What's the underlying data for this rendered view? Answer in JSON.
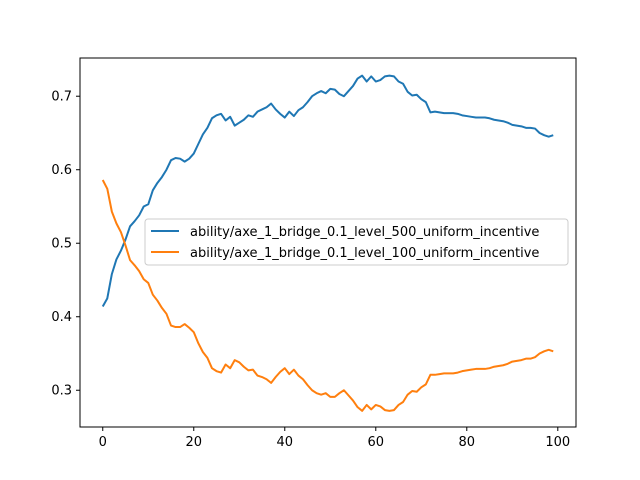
{
  "chart_data": {
    "type": "line",
    "title": "",
    "xlabel": "",
    "ylabel": "",
    "xlim": [
      -5,
      104
    ],
    "ylim": [
      0.25,
      0.752
    ],
    "x_ticks": [
      0,
      20,
      40,
      60,
      80,
      100
    ],
    "y_ticks": [
      0.3,
      0.4,
      0.5,
      0.6,
      0.7
    ],
    "grid": false,
    "legend_position": "center-right",
    "x": [
      0,
      1,
      2,
      3,
      4,
      5,
      6,
      7,
      8,
      9,
      10,
      11,
      12,
      13,
      14,
      15,
      16,
      17,
      18,
      19,
      20,
      21,
      22,
      23,
      24,
      25,
      26,
      27,
      28,
      29,
      30,
      31,
      32,
      33,
      34,
      35,
      36,
      37,
      38,
      39,
      40,
      41,
      42,
      43,
      44,
      45,
      46,
      47,
      48,
      49,
      50,
      51,
      52,
      53,
      54,
      55,
      56,
      57,
      58,
      59,
      60,
      61,
      62,
      63,
      64,
      65,
      66,
      67,
      68,
      69,
      70,
      71,
      72,
      73,
      74,
      75,
      76,
      77,
      78,
      79,
      80,
      81,
      82,
      83,
      84,
      85,
      86,
      87,
      88,
      89,
      90,
      91,
      92,
      93,
      94,
      95,
      96,
      97,
      98,
      99
    ],
    "series": [
      {
        "name": "ability/axe_1_bridge_0.1_level_500_uniform_incentive",
        "color": "#1f77b4",
        "values": [
          0.414,
          0.425,
          0.458,
          0.478,
          0.49,
          0.505,
          0.523,
          0.53,
          0.538,
          0.55,
          0.553,
          0.572,
          0.582,
          0.59,
          0.6,
          0.613,
          0.616,
          0.615,
          0.611,
          0.615,
          0.622,
          0.635,
          0.648,
          0.657,
          0.67,
          0.674,
          0.676,
          0.667,
          0.672,
          0.66,
          0.664,
          0.668,
          0.674,
          0.672,
          0.679,
          0.682,
          0.685,
          0.69,
          0.682,
          0.676,
          0.671,
          0.679,
          0.673,
          0.681,
          0.685,
          0.692,
          0.7,
          0.704,
          0.707,
          0.704,
          0.71,
          0.709,
          0.703,
          0.7,
          0.707,
          0.714,
          0.724,
          0.728,
          0.72,
          0.727,
          0.72,
          0.722,
          0.727,
          0.728,
          0.727,
          0.72,
          0.717,
          0.706,
          0.701,
          0.702,
          0.696,
          0.692,
          0.678,
          0.679,
          0.678,
          0.677,
          0.677,
          0.677,
          0.676,
          0.674,
          0.673,
          0.672,
          0.671,
          0.671,
          0.671,
          0.67,
          0.668,
          0.667,
          0.666,
          0.664,
          0.661,
          0.66,
          0.659,
          0.657,
          0.657,
          0.656,
          0.65,
          0.647,
          0.645,
          0.647
        ]
      },
      {
        "name": "ability/axe_1_bridge_0.1_level_100_uniform_incentive",
        "color": "#ff7f0e",
        "values": [
          0.586,
          0.574,
          0.543,
          0.527,
          0.515,
          0.497,
          0.477,
          0.47,
          0.462,
          0.451,
          0.446,
          0.43,
          0.422,
          0.412,
          0.404,
          0.388,
          0.386,
          0.386,
          0.39,
          0.385,
          0.379,
          0.364,
          0.352,
          0.344,
          0.33,
          0.326,
          0.324,
          0.335,
          0.33,
          0.341,
          0.338,
          0.332,
          0.327,
          0.328,
          0.32,
          0.318,
          0.315,
          0.31,
          0.318,
          0.325,
          0.33,
          0.322,
          0.328,
          0.32,
          0.315,
          0.307,
          0.3,
          0.296,
          0.294,
          0.296,
          0.291,
          0.291,
          0.296,
          0.3,
          0.293,
          0.286,
          0.277,
          0.272,
          0.28,
          0.274,
          0.28,
          0.278,
          0.273,
          0.272,
          0.273,
          0.28,
          0.284,
          0.294,
          0.299,
          0.298,
          0.304,
          0.308,
          0.321,
          0.321,
          0.322,
          0.323,
          0.323,
          0.323,
          0.324,
          0.326,
          0.327,
          0.328,
          0.329,
          0.329,
          0.329,
          0.33,
          0.332,
          0.333,
          0.334,
          0.336,
          0.339,
          0.34,
          0.341,
          0.343,
          0.343,
          0.345,
          0.35,
          0.353,
          0.355,
          0.353
        ]
      }
    ]
  }
}
